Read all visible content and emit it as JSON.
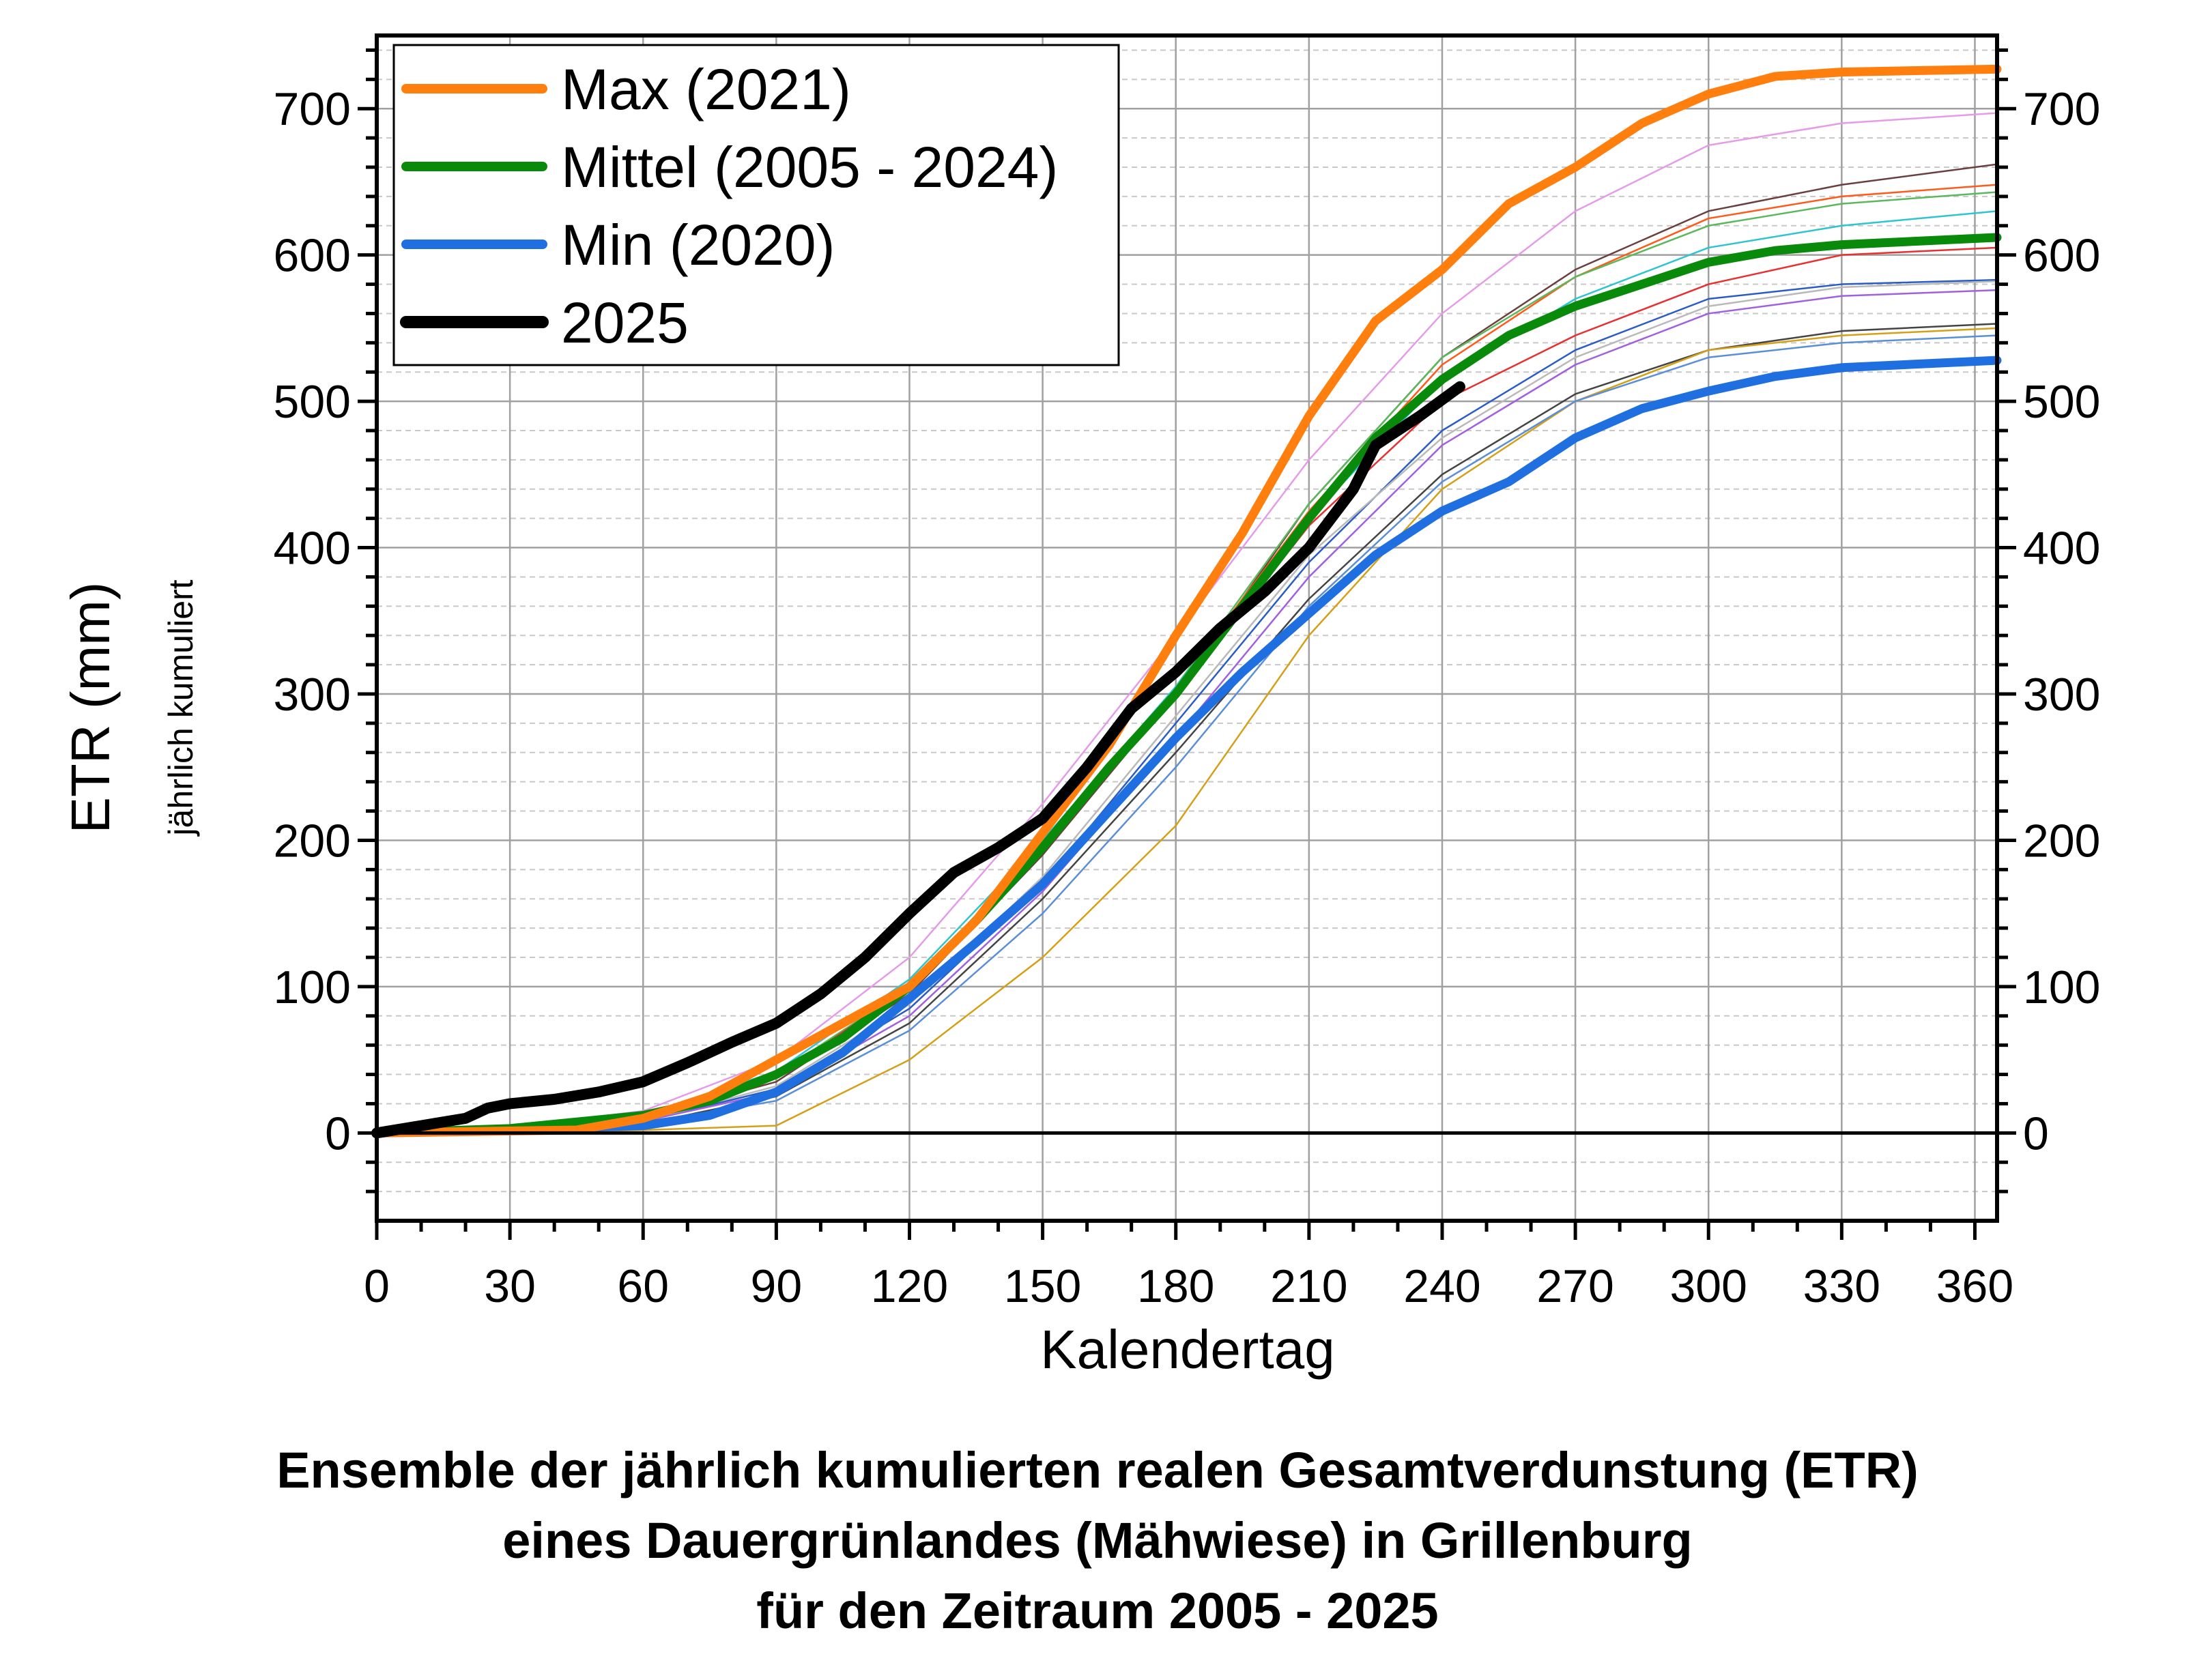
{
  "chart_data": {
    "type": "line",
    "xlabel": "Kalendertag",
    "ylabel": "ETR (mm)",
    "ylabel_sub": "jährlich kumuliert",
    "xlim": [
      0,
      365
    ],
    "ylim": [
      -60,
      750
    ],
    "xticks": [
      0,
      30,
      60,
      90,
      120,
      150,
      180,
      210,
      240,
      270,
      300,
      330,
      360
    ],
    "yticks": [
      0,
      100,
      200,
      300,
      400,
      500,
      600,
      700
    ],
    "grid": true,
    "legend_position": "top-left",
    "title": [
      "Ensemble der jährlich kumulierten realen Gesamtverdunstung (ETR)",
      "eines Dauergrünlandes (Mähwiese) in Grillenburg",
      "für den Zeitraum 2005 - 2025"
    ],
    "series": [
      {
        "name": "Max (2021)",
        "color": "#ff7f0e",
        "width": "bold",
        "x": [
          0,
          45,
          60,
          75,
          90,
          105,
          120,
          135,
          150,
          165,
          180,
          195,
          210,
          225,
          240,
          255,
          270,
          285,
          300,
          315,
          330,
          365
        ],
        "y": [
          0,
          2,
          10,
          25,
          50,
          75,
          100,
          145,
          205,
          265,
          340,
          410,
          490,
          555,
          590,
          635,
          660,
          690,
          710,
          722,
          725,
          727
        ]
      },
      {
        "name": "Mittel (2005 - 2024)",
        "color": "#0a8a0a",
        "width": "bold",
        "x": [
          0,
          30,
          60,
          75,
          90,
          105,
          120,
          135,
          150,
          165,
          180,
          195,
          210,
          225,
          240,
          255,
          270,
          285,
          300,
          315,
          330,
          365
        ],
        "y": [
          0,
          3,
          12,
          22,
          40,
          65,
          100,
          145,
          195,
          250,
          300,
          360,
          420,
          475,
          515,
          545,
          565,
          580,
          595,
          603,
          607,
          612
        ]
      },
      {
        "name": "Min (2020)",
        "color": "#1f6fe0",
        "width": "bold",
        "x": [
          0,
          60,
          75,
          90,
          105,
          120,
          135,
          150,
          165,
          180,
          195,
          210,
          225,
          240,
          255,
          270,
          285,
          300,
          315,
          330,
          365
        ],
        "y": [
          0,
          5,
          12,
          28,
          55,
          92,
          130,
          170,
          220,
          270,
          315,
          355,
          395,
          425,
          445,
          475,
          495,
          507,
          517,
          523,
          528
        ]
      },
      {
        "name": "2025",
        "color": "#000000",
        "width": "bold",
        "x": [
          0,
          10,
          20,
          25,
          30,
          40,
          50,
          60,
          70,
          80,
          90,
          100,
          110,
          120,
          130,
          140,
          150,
          160,
          170,
          180,
          190,
          200,
          210,
          220,
          225,
          235,
          244
        ],
        "y": [
          0,
          5,
          10,
          17,
          20,
          23,
          28,
          35,
          48,
          62,
          75,
          95,
          120,
          150,
          178,
          195,
          215,
          250,
          290,
          315,
          345,
          370,
          400,
          440,
          470,
          490,
          510
        ]
      }
    ],
    "ensemble_x": [
      0,
      30,
      60,
      90,
      120,
      150,
      180,
      210,
      240,
      270,
      300,
      330,
      365
    ],
    "ensemble": [
      {
        "color": "#e59be8",
        "y": [
          0,
          4,
          15,
          50,
          120,
          225,
          340,
          460,
          560,
          630,
          675,
          690,
          697
        ]
      },
      {
        "color": "#6b3f3f",
        "y": [
          0,
          3,
          10,
          35,
          95,
          190,
          300,
          430,
          530,
          590,
          630,
          648,
          662
        ]
      },
      {
        "color": "#ff5a1a",
        "y": [
          0,
          2,
          10,
          38,
          98,
          195,
          305,
          425,
          525,
          585,
          625,
          640,
          648
        ]
      },
      {
        "color": "#5cb85c",
        "y": [
          0,
          3,
          12,
          40,
          100,
          198,
          305,
          430,
          530,
          585,
          620,
          635,
          643
        ]
      },
      {
        "color": "#2ec4d0",
        "y": [
          0,
          3,
          12,
          42,
          105,
          200,
          305,
          420,
          515,
          570,
          605,
          620,
          630
        ]
      },
      {
        "color": "#e83030",
        "y": [
          0,
          2,
          10,
          38,
          100,
          195,
          300,
          415,
          500,
          545,
          580,
          600,
          605
        ]
      },
      {
        "color": "#2a5cc8",
        "y": [
          0,
          2,
          8,
          30,
          85,
          170,
          280,
          390,
          480,
          535,
          570,
          580,
          583
        ]
      },
      {
        "color": "#b9b9b9",
        "y": [
          0,
          2,
          8,
          32,
          88,
          175,
          285,
          395,
          475,
          530,
          565,
          578,
          582
        ]
      },
      {
        "color": "#a060e0",
        "y": [
          0,
          2,
          8,
          28,
          80,
          165,
          270,
          380,
          470,
          525,
          560,
          572,
          576
        ]
      },
      {
        "color": "#444444",
        "y": [
          0,
          2,
          6,
          25,
          75,
          160,
          260,
          365,
          450,
          505,
          535,
          548,
          553
        ]
      },
      {
        "color": "#d4a017",
        "y": [
          0,
          0,
          2,
          5,
          50,
          120,
          210,
          340,
          440,
          500,
          535,
          545,
          550
        ]
      },
      {
        "color": "#5a8fd8",
        "y": [
          0,
          2,
          6,
          22,
          70,
          150,
          250,
          360,
          445,
          500,
          530,
          540,
          545
        ]
      }
    ]
  }
}
